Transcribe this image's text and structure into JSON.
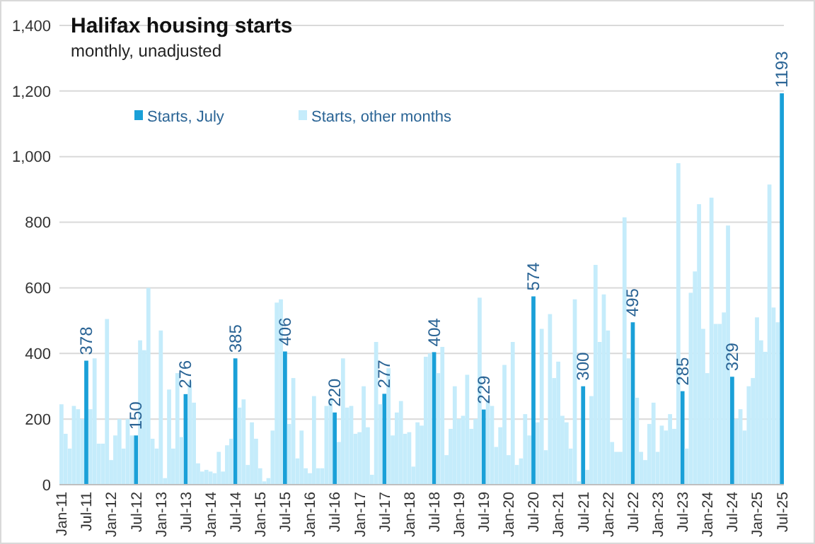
{
  "chart_data": {
    "type": "bar",
    "title": "Halifax housing starts",
    "subtitle": "monthly, unadjusted",
    "categories": [
      "Jan-11",
      null,
      null,
      null,
      null,
      null,
      "Jul-11",
      null,
      null,
      null,
      null,
      null,
      "Jan-12",
      null,
      null,
      null,
      null,
      null,
      "Jul-12",
      null,
      null,
      null,
      null,
      null,
      "Jan-13",
      null,
      null,
      null,
      null,
      null,
      "Jul-13",
      null,
      null,
      null,
      null,
      null,
      "Jan-14",
      null,
      null,
      null,
      null,
      null,
      "Jul-14",
      null,
      null,
      null,
      null,
      null,
      "Jan-15",
      null,
      null,
      null,
      null,
      null,
      "Jul-15",
      null,
      null,
      null,
      null,
      null,
      "Jan-16",
      null,
      null,
      null,
      null,
      null,
      "Jul-16",
      null,
      null,
      null,
      null,
      null,
      "Jan-17",
      null,
      null,
      null,
      null,
      null,
      "Jul-17",
      null,
      null,
      null,
      null,
      null,
      "Jan-18",
      null,
      null,
      null,
      null,
      null,
      "Jul-18",
      null,
      null,
      null,
      null,
      null,
      "Jan-19",
      null,
      null,
      null,
      null,
      null,
      "Jul-19",
      null,
      null,
      null,
      null,
      null,
      "Jan-20",
      null,
      null,
      null,
      null,
      null,
      "Jul-20",
      null,
      null,
      null,
      null,
      null,
      "Jan-21",
      null,
      null,
      null,
      null,
      null,
      "Jul-21",
      null,
      null,
      null,
      null,
      null,
      "Jan-22",
      null,
      null,
      null,
      null,
      null,
      "Jul-22",
      null,
      null,
      null,
      null,
      null,
      "Jan-23",
      null,
      null,
      null,
      null,
      null,
      "Jul-23",
      null,
      null,
      null,
      null,
      null,
      "Jan-24",
      null,
      null,
      null,
      null,
      null,
      "Jul-24",
      null,
      null,
      null,
      null,
      null,
      "Jan-25",
      null,
      null,
      null,
      null,
      null,
      "Jul-25"
    ],
    "series": [
      {
        "name": "Starts, July",
        "color": "#1aa0d8",
        "values": [
          null,
          null,
          null,
          null,
          null,
          null,
          378,
          null,
          null,
          null,
          null,
          null,
          null,
          null,
          null,
          null,
          null,
          null,
          150,
          null,
          null,
          null,
          null,
          null,
          null,
          null,
          null,
          null,
          null,
          null,
          276,
          null,
          null,
          null,
          null,
          null,
          null,
          null,
          null,
          null,
          null,
          null,
          385,
          null,
          null,
          null,
          null,
          null,
          null,
          null,
          null,
          null,
          null,
          null,
          406,
          null,
          null,
          null,
          null,
          null,
          null,
          null,
          null,
          null,
          null,
          null,
          220,
          null,
          null,
          null,
          null,
          null,
          null,
          null,
          null,
          null,
          null,
          null,
          277,
          null,
          null,
          null,
          null,
          null,
          null,
          null,
          null,
          null,
          null,
          null,
          404,
          null,
          null,
          null,
          null,
          null,
          null,
          null,
          null,
          null,
          null,
          null,
          229,
          null,
          null,
          null,
          null,
          null,
          null,
          null,
          null,
          null,
          null,
          null,
          574,
          null,
          null,
          null,
          null,
          null,
          null,
          null,
          null,
          null,
          null,
          null,
          300,
          null,
          null,
          null,
          null,
          null,
          null,
          null,
          null,
          null,
          null,
          null,
          495,
          null,
          null,
          null,
          null,
          null,
          null,
          null,
          null,
          null,
          null,
          null,
          285,
          null,
          null,
          null,
          null,
          null,
          null,
          null,
          null,
          null,
          null,
          null,
          329,
          null,
          null,
          null,
          null,
          null,
          null,
          null,
          null,
          null,
          null,
          null,
          1193
        ],
        "value_labels": [
          null,
          null,
          null,
          null,
          null,
          null,
          "378",
          null,
          null,
          null,
          null,
          null,
          null,
          null,
          null,
          null,
          null,
          null,
          "150",
          null,
          null,
          null,
          null,
          null,
          null,
          null,
          null,
          null,
          null,
          null,
          "276",
          null,
          null,
          null,
          null,
          null,
          null,
          null,
          null,
          null,
          null,
          null,
          "385",
          null,
          null,
          null,
          null,
          null,
          null,
          null,
          null,
          null,
          null,
          null,
          "406",
          null,
          null,
          null,
          null,
          null,
          null,
          null,
          null,
          null,
          null,
          null,
          "220",
          null,
          null,
          null,
          null,
          null,
          null,
          null,
          null,
          null,
          null,
          null,
          "277",
          null,
          null,
          null,
          null,
          null,
          null,
          null,
          null,
          null,
          null,
          null,
          "404",
          null,
          null,
          null,
          null,
          null,
          null,
          null,
          null,
          null,
          null,
          null,
          "229",
          null,
          null,
          null,
          null,
          null,
          null,
          null,
          null,
          null,
          null,
          null,
          "574",
          null,
          null,
          null,
          null,
          null,
          null,
          null,
          null,
          null,
          null,
          null,
          "300",
          null,
          null,
          null,
          null,
          null,
          null,
          null,
          null,
          null,
          null,
          null,
          "495",
          null,
          null,
          null,
          null,
          null,
          null,
          null,
          null,
          null,
          null,
          null,
          "285",
          null,
          null,
          null,
          null,
          null,
          null,
          null,
          null,
          null,
          null,
          null,
          "329",
          null,
          null,
          null,
          null,
          null,
          null,
          null,
          null,
          null,
          null,
          null,
          "1193"
        ]
      },
      {
        "name": "Starts, other months",
        "color": "#c5ecfb",
        "values": [
          245,
          155,
          110,
          240,
          230,
          200,
          null,
          230,
          385,
          125,
          125,
          505,
          75,
          150,
          200,
          110,
          200,
          150,
          null,
          440,
          410,
          600,
          140,
          110,
          470,
          20,
          290,
          110,
          340,
          145,
          null,
          315,
          250,
          65,
          40,
          45,
          40,
          35,
          100,
          40,
          120,
          140,
          null,
          235,
          260,
          60,
          190,
          140,
          50,
          10,
          20,
          165,
          555,
          565,
          null,
          185,
          325,
          80,
          165,
          50,
          35,
          270,
          50,
          50,
          240,
          260,
          null,
          130,
          385,
          235,
          240,
          155,
          160,
          300,
          175,
          30,
          435,
          245,
          null,
          355,
          150,
          220,
          255,
          155,
          160,
          55,
          190,
          180,
          390,
          400,
          null,
          340,
          420,
          90,
          170,
          300,
          200,
          210,
          335,
          170,
          200,
          570,
          null,
          260,
          240,
          115,
          175,
          365,
          90,
          435,
          60,
          80,
          215,
          150,
          null,
          190,
          475,
          105,
          520,
          325,
          375,
          210,
          190,
          110,
          565,
          10,
          null,
          45,
          270,
          670,
          435,
          580,
          470,
          130,
          100,
          100,
          815,
          385,
          null,
          265,
          100,
          75,
          185,
          250,
          100,
          180,
          165,
          215,
          170,
          980,
          null,
          110,
          585,
          650,
          855,
          475,
          340,
          875,
          490,
          490,
          525,
          790,
          null,
          200,
          230,
          165,
          300,
          325,
          510,
          440,
          405,
          915,
          540,
          495,
          null
        ]
      }
    ],
    "ylim": [
      0,
      1400
    ],
    "yticks": [
      0,
      200,
      400,
      600,
      800,
      {
        "value": 1000,
        "label": "1,000"
      },
      {
        "value": 1200,
        "label": "1,200"
      },
      {
        "value": 1400,
        "label": "1,400"
      }
    ],
    "grid": "y",
    "legend": "top left"
  }
}
